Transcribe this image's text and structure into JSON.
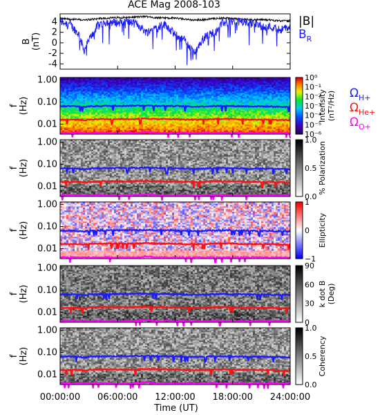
{
  "title": "ACE Mag 2008-103",
  "xaxis": {
    "label": "Time (UT)",
    "ticks": [
      "00:00:00",
      "06:00:00",
      "12:00:00",
      "18:00:00",
      "24:00:00"
    ],
    "range_hours": [
      0,
      24
    ]
  },
  "colors": {
    "b_total": "#000000",
    "b_r": "#1a1aff",
    "h_plus": "#1a1aff",
    "he_plus": "#ff1010",
    "o_plus": "#ff00ff"
  },
  "legend_top": {
    "b_total": "|B|",
    "b_r": "B",
    "b_r_sub": "R"
  },
  "legend_gyro": [
    {
      "symbol": "Ω",
      "sub": "H+",
      "color": "#1a1aff"
    },
    {
      "symbol": "Ω",
      "sub": "He+",
      "color": "#ff1010"
    },
    {
      "symbol": "Ω",
      "sub": "O+",
      "color": "#ff00ff"
    }
  ],
  "panel_b": {
    "ylabel": "B",
    "yunit": "(nT)",
    "ylim": [
      -5,
      5.5
    ],
    "yticks": [
      "4",
      "2",
      "0",
      "-2",
      "-4"
    ]
  },
  "freq_axis": {
    "ylabel": "f",
    "yunit": "(Hz)",
    "yticks": [
      "1.00",
      "0.10",
      "0.01"
    ]
  },
  "spectrograms": [
    {
      "id": "intensity",
      "colorbar_label": "Intensity",
      "colorbar_unit": "(nT²/Hz)",
      "colorbar_ticks": [
        "10⁰",
        "10⁻¹",
        "10⁻²",
        "10⁻³",
        "10⁻⁴",
        "10⁻⁵",
        "10⁻⁶"
      ]
    },
    {
      "id": "polarization",
      "colorbar_label": "% Polarization",
      "colorbar_unit": "",
      "colorbar_ticks": [
        "1.0",
        "0.5",
        "0.0"
      ]
    },
    {
      "id": "ellipticity",
      "colorbar_label": "Ellipticity",
      "colorbar_unit": "",
      "colorbar_ticks": [
        "1",
        "0",
        "−1"
      ]
    },
    {
      "id": "kdotb",
      "colorbar_label": "k dot B",
      "colorbar_unit": "(Deg)",
      "colorbar_ticks": [
        "90",
        "60",
        "30",
        "0"
      ]
    },
    {
      "id": "coherency",
      "colorbar_label": "Coherency",
      "colorbar_unit": "",
      "colorbar_ticks": [
        "1.0",
        "0.5",
        "0.0"
      ]
    }
  ],
  "chart_data": {
    "type": "heatmap",
    "title": "ACE Mag 2008-103",
    "xlabel": "Time (UT)",
    "x_hours": [
      0,
      1,
      2,
      2.5,
      3,
      4,
      5,
      6,
      7,
      8,
      9,
      10,
      11,
      12,
      13,
      14,
      15,
      16,
      17,
      18,
      19,
      20,
      21,
      22,
      23,
      24
    ],
    "series": [
      {
        "name": "|B|",
        "values": [
          4.6,
          4.5,
          4.4,
          4.3,
          4.4,
          4.6,
          4.7,
          4.8,
          4.8,
          4.9,
          5.0,
          4.8,
          4.7,
          4.7,
          4.5,
          4.3,
          4.4,
          4.6,
          4.7,
          4.6,
          4.5,
          4.4,
          4.4,
          4.3,
          4.2,
          4.2
        ]
      },
      {
        "name": "B_R",
        "values": [
          4.0,
          3.6,
          1.5,
          -1.5,
          0.5,
          3.5,
          4.0,
          3.8,
          4.0,
          3.6,
          2.0,
          3.0,
          3.5,
          1.5,
          0.5,
          -2.0,
          1.0,
          2.0,
          3.8,
          4.0,
          4.0,
          3.8,
          3.2,
          3.0,
          2.5,
          3.0
        ]
      },
      {
        "name": "Ω_H+ (Hz)",
        "values": [
          0.065,
          0.065,
          0.063,
          0.06,
          0.064,
          0.066,
          0.067,
          0.068,
          0.068,
          0.069,
          0.07,
          0.068,
          0.067,
          0.066,
          0.064,
          0.062,
          0.064,
          0.066,
          0.067,
          0.066,
          0.065,
          0.064,
          0.064,
          0.063,
          0.061,
          0.06
        ]
      },
      {
        "name": "Ω_He+ (Hz)",
        "values": [
          0.016,
          0.016,
          0.016,
          0.015,
          0.016,
          0.017,
          0.017,
          0.017,
          0.017,
          0.017,
          0.018,
          0.017,
          0.017,
          0.017,
          0.016,
          0.016,
          0.016,
          0.017,
          0.017,
          0.017,
          0.016,
          0.016,
          0.016,
          0.016,
          0.015,
          0.015
        ]
      },
      {
        "name": "Ω_O+ (Hz)",
        "values": [
          0.004,
          0.004,
          0.004,
          0.004,
          0.004,
          0.004,
          0.004,
          0.004,
          0.004,
          0.004,
          0.0045,
          0.004,
          0.004,
          0.004,
          0.004,
          0.004,
          0.004,
          0.004,
          0.004,
          0.004,
          0.004,
          0.004,
          0.004,
          0.004,
          0.004,
          0.004
        ]
      }
    ],
    "freq_range_hz": [
      0.0035,
      1.3
    ]
  }
}
